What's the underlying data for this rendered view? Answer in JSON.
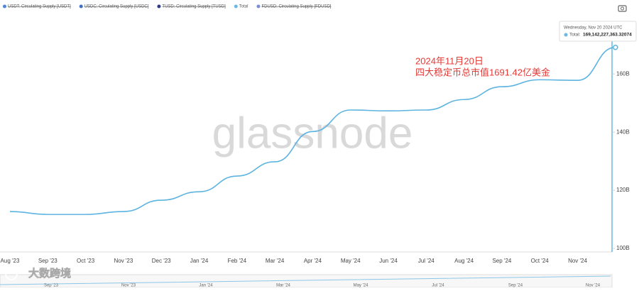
{
  "chart_data": {
    "type": "line",
    "legend_items": [
      {
        "name": "USDT: Circulating Supply [USDT]",
        "color": "#4f86d6",
        "hidden": true
      },
      {
        "name": "USDC: Circulating Supply [USDC]",
        "color": "#3f6fc4",
        "hidden": true
      },
      {
        "name": "TUSD: Circulating Supply [TUSD]",
        "color": "#2b3a8a",
        "hidden": true
      },
      {
        "name": "Total",
        "color": "#6cb8e2",
        "hidden": false
      },
      {
        "name": "FDUSD: Circulating Supply [FDUSD]",
        "color": "#7a8ed8",
        "hidden": true
      }
    ],
    "categories": [
      "Aug '23",
      "Sep '23",
      "Oct '23",
      "Nov '23",
      "Dec '23",
      "Jan '24",
      "Feb '24",
      "Mar '24",
      "Apr '24",
      "May '24",
      "Jun '24",
      "Jul '24",
      "Aug '24",
      "Sep '24",
      "Oct '24",
      "Nov '24",
      null
    ],
    "series": [
      {
        "name": "Total",
        "color": "#5db4e0",
        "values": [
          112.7,
          111.7,
          111.7,
          112.7,
          116.6,
          119.5,
          124.9,
          129.8,
          140.2,
          147.6,
          147.3,
          147.6,
          151.2,
          155.6,
          158.0,
          157.8,
          169.14
        ]
      }
    ],
    "ylim": [
      98.8,
      172
    ],
    "yticks": [
      {
        "value": 100,
        "label": "100B"
      },
      {
        "value": 120,
        "label": "120B"
      },
      {
        "value": 140,
        "label": "140B"
      },
      {
        "value": 160,
        "label": "160B"
      }
    ],
    "grid": false,
    "watermark": "glassnode",
    "tooltip": {
      "date": "Wednesday, Nov 20 2024 UTC",
      "label": "Total:",
      "value": "169,142,227,363.32074"
    },
    "annotation": {
      "lines": [
        "2024年11月20日",
        "四大稳定币总市值1691.42亿美金"
      ],
      "color": "#e53935"
    },
    "navigator_labels": [
      "Sep '23",
      "Nov '23",
      "Jan '24",
      "Mar '24",
      "May '24",
      "Jul '24",
      "Sep '24",
      "Nov '24"
    ]
  },
  "logo": "大数跨境"
}
